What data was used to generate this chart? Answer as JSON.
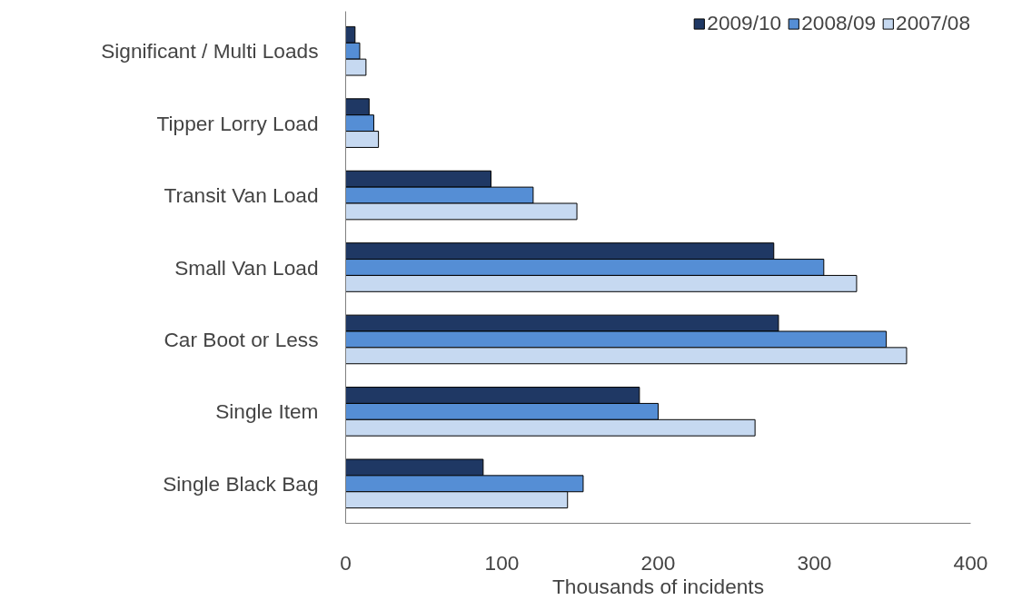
{
  "chart_data": {
    "type": "bar",
    "orientation": "horizontal",
    "categories": [
      "Significant / Multi Loads",
      "Tipper Lorry Load",
      "Transit Van Load",
      "Small Van Load",
      "Car Boot or Less",
      "Single Item",
      "Single Black Bag"
    ],
    "series": [
      {
        "name": "2009/10",
        "color": "#1f3864",
        "values": [
          6,
          15,
          93,
          274,
          277,
          188,
          88
        ]
      },
      {
        "name": "2008/09",
        "color": "#558ed5",
        "values": [
          9,
          18,
          120,
          306,
          346,
          200,
          152
        ]
      },
      {
        "name": "2007/08",
        "color": "#c6d9f1",
        "values": [
          13,
          21,
          148,
          327,
          359,
          262,
          142
        ]
      }
    ],
    "xlim": [
      0,
      400
    ],
    "xticks": [
      0,
      100,
      200,
      300,
      400
    ],
    "xlabel": "Thousands of incidents",
    "grid": false,
    "legend": "top right"
  }
}
